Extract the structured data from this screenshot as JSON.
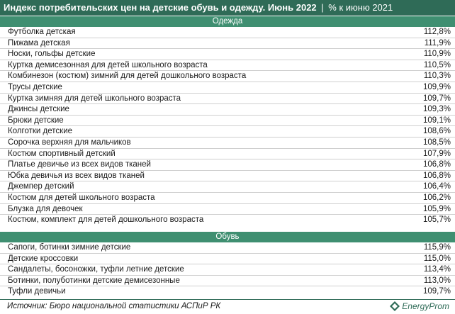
{
  "title": {
    "main": "Индекс потребительских цен на детские обувь и одежду. Июнь 2022",
    "separator": "|",
    "sub": "% к июню 2021"
  },
  "sections": [
    {
      "name": "Одежда",
      "rows": [
        {
          "label": "Футболка детская",
          "value": "112,8%"
        },
        {
          "label": "Пижама детская",
          "value": "111,9%"
        },
        {
          "label": "Носки, гольфы детские",
          "value": "110,9%"
        },
        {
          "label": "Куртка демисезонная для детей школьного возраста",
          "value": "110,5%"
        },
        {
          "label": "Комбинезон (костюм) зимний для детей дошкольного возраста",
          "value": "110,3%"
        },
        {
          "label": "Трусы детские",
          "value": "109,9%"
        },
        {
          "label": "Куртка зимняя для детей школьного возраста",
          "value": "109,7%"
        },
        {
          "label": "Джинсы детские",
          "value": "109,3%"
        },
        {
          "label": "Брюки детские",
          "value": "109,1%"
        },
        {
          "label": "Колготки детские",
          "value": "108,6%"
        },
        {
          "label": "Сорочка верхняя для мальчиков",
          "value": "108,5%"
        },
        {
          "label": "Костюм спортивный детский",
          "value": "107,9%"
        },
        {
          "label": "Платье девичье из всех видов тканей",
          "value": "106,8%"
        },
        {
          "label": "Юбка девичья из всех видов тканей",
          "value": "106,8%"
        },
        {
          "label": "Джемпер детский",
          "value": "106,4%"
        },
        {
          "label": "Костюм для детей школьного возраста",
          "value": "106,2%"
        },
        {
          "label": "Блузка для девочек",
          "value": "105,9%"
        },
        {
          "label": "Костюм, комплект для детей дошкольного возраста",
          "value": "105,7%"
        }
      ]
    },
    {
      "name": "Обувь",
      "rows": [
        {
          "label": "Сапоги, ботинки зимние детские",
          "value": "115,9%"
        },
        {
          "label": "Детские кроссовки",
          "value": "115,0%"
        },
        {
          "label": "Сандалеты, босоножки, туфли летние детские",
          "value": "113,4%"
        },
        {
          "label": "Ботинки, полуботинки детские демисезонные",
          "value": "113,0%"
        },
        {
          "label": "Туфли девичьи",
          "value": "109,7%"
        }
      ]
    }
  ],
  "source": "Источник: Бюро национальной статистики АСПиР РК",
  "logo": {
    "text": "EnergyProm",
    "icon": "energyprom-logo-icon"
  },
  "colors": {
    "header": "#2f6b57",
    "section": "#3f8f71"
  }
}
